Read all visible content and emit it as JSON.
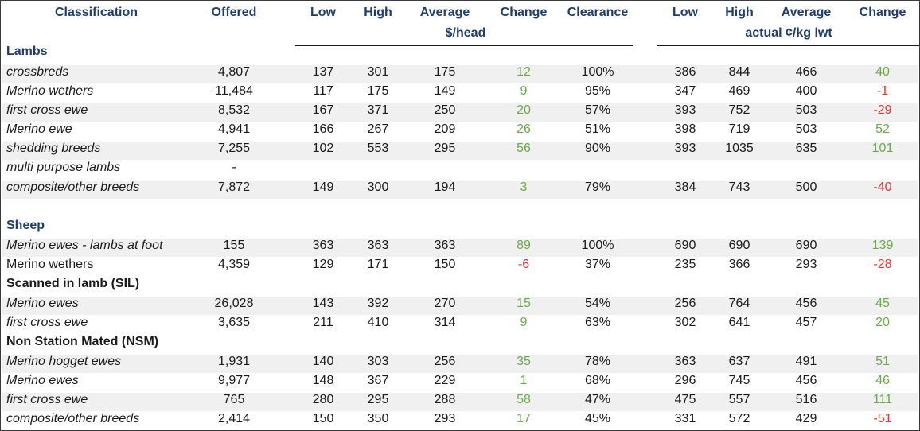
{
  "header": {
    "classification": "Classification",
    "offered": "Offered",
    "low": "Low",
    "high": "High",
    "average": "Average",
    "change": "Change",
    "clearance": "Clearance",
    "low2": "Low",
    "high2": "High",
    "average2": "Average",
    "change2": "Change",
    "unit_head": "$/head",
    "unit_kg": "actual ¢/kg lwt"
  },
  "sections": {
    "lambs": "Lambs",
    "sheep": "Sheep",
    "sil": "Scanned in lamb (SIL)",
    "nsm": "Non Station Mated (NSM)"
  },
  "rows": [
    {
      "label": "crossbreds",
      "offered": "4,807",
      "low": "137",
      "high": "301",
      "avg": "175",
      "change": "12",
      "clearance": "100%",
      "low_kg": "386",
      "high_kg": "844",
      "avg_kg": "466",
      "change_kg": "40"
    },
    {
      "label": "Merino wethers",
      "offered": "11,484",
      "low": "117",
      "high": "175",
      "avg": "149",
      "change": "9",
      "clearance": "95%",
      "low_kg": "347",
      "high_kg": "469",
      "avg_kg": "400",
      "change_kg": "-1"
    },
    {
      "label": "first cross ewe",
      "offered": "8,532",
      "low": "167",
      "high": "371",
      "avg": "250",
      "change": "20",
      "clearance": "57%",
      "low_kg": "393",
      "high_kg": "752",
      "avg_kg": "503",
      "change_kg": "-29"
    },
    {
      "label": "Merino ewe",
      "offered": "4,941",
      "low": "166",
      "high": "267",
      "avg": "209",
      "change": "26",
      "clearance": "51%",
      "low_kg": "398",
      "high_kg": "719",
      "avg_kg": "503",
      "change_kg": "52"
    },
    {
      "label": "shedding breeds",
      "offered": "7,255",
      "low": "102",
      "high": "553",
      "avg": "295",
      "change": "56",
      "clearance": "90%",
      "low_kg": "393",
      "high_kg": "1035",
      "avg_kg": "635",
      "change_kg": "101"
    },
    {
      "label": "multi purpose lambs",
      "offered": "-",
      "low": "",
      "high": "",
      "avg": "",
      "change": "",
      "clearance": "",
      "low_kg": "",
      "high_kg": "",
      "avg_kg": "",
      "change_kg": ""
    },
    {
      "label": "composite/other breeds",
      "offered": "7,872",
      "low": "149",
      "high": "300",
      "avg": "194",
      "change": "3",
      "clearance": "79%",
      "low_kg": "384",
      "high_kg": "743",
      "avg_kg": "500",
      "change_kg": "-40"
    },
    {
      "label": "Merino ewes - lambs at foot",
      "offered": "155",
      "low": "363",
      "high": "363",
      "avg": "363",
      "change": "89",
      "clearance": "100%",
      "low_kg": "690",
      "high_kg": "690",
      "avg_kg": "690",
      "change_kg": "139"
    },
    {
      "label": "Merino wethers",
      "offered": "4,359",
      "low": "129",
      "high": "171",
      "avg": "150",
      "change": "-6",
      "clearance": "37%",
      "low_kg": "235",
      "high_kg": "366",
      "avg_kg": "293",
      "change_kg": "-28"
    },
    {
      "label": "Merino ewes",
      "offered": "26,028",
      "low": "143",
      "high": "392",
      "avg": "270",
      "change": "15",
      "clearance": "54%",
      "low_kg": "256",
      "high_kg": "764",
      "avg_kg": "456",
      "change_kg": "45"
    },
    {
      "label": "first cross ewe",
      "offered": "3,635",
      "low": "211",
      "high": "410",
      "avg": "314",
      "change": "9",
      "clearance": "63%",
      "low_kg": "302",
      "high_kg": "641",
      "avg_kg": "457",
      "change_kg": "20"
    },
    {
      "label": "Merino hogget ewes",
      "offered": "1,931",
      "low": "140",
      "high": "303",
      "avg": "256",
      "change": "35",
      "clearance": "78%",
      "low_kg": "363",
      "high_kg": "637",
      "avg_kg": "491",
      "change_kg": "51"
    },
    {
      "label": "Merino ewes",
      "offered": "9,977",
      "low": "148",
      "high": "367",
      "avg": "229",
      "change": "1",
      "clearance": "68%",
      "low_kg": "296",
      "high_kg": "745",
      "avg_kg": "456",
      "change_kg": "46"
    },
    {
      "label": "first cross ewe",
      "offered": "765",
      "low": "280",
      "high": "295",
      "avg": "288",
      "change": "58",
      "clearance": "47%",
      "low_kg": "475",
      "high_kg": "557",
      "avg_kg": "516",
      "change_kg": "111"
    },
    {
      "label": "composite/other breeds",
      "offered": "2,414",
      "low": "150",
      "high": "350",
      "avg": "293",
      "change": "17",
      "clearance": "45%",
      "low_kg": "331",
      "high_kg": "572",
      "avg_kg": "429",
      "change_kg": "-51"
    }
  ],
  "colors": {
    "header_text": "#1f3d6b",
    "positive_change": "#6aaa4a",
    "negative_change": "#e53530",
    "row_shade": "#f0f0f0"
  }
}
